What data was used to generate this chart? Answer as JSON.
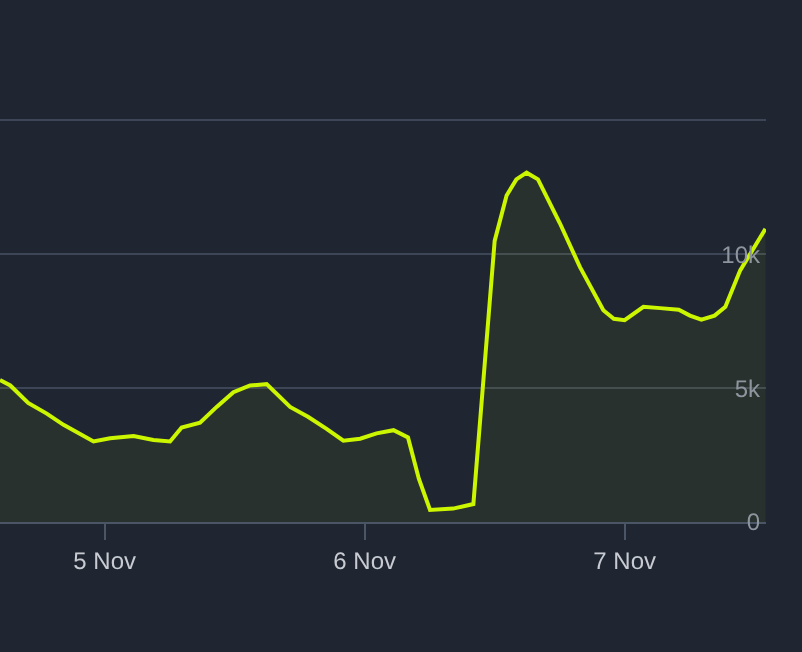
{
  "chart_data": {
    "type": "area",
    "x": [
      "--11-04T14:20",
      "--11-04T15:17",
      "--11-04T16:56",
      "--11-04T18:39",
      "--11-04T20:12",
      "--11-04T22:58",
      "--11-05T00:30",
      "--11-05T02:40",
      "--11-05T04:30",
      "--11-05T06:02",
      "--11-05T07:06",
      "--11-05T08:48",
      "--11-05T10:20",
      "--11-05T11:53",
      "--11-05T13:25",
      "--11-05T14:57",
      "--11-05T17:07",
      "--11-05T18:46",
      "--11-05T20:29",
      "--11-05T22:02",
      "--11-05T23:35",
      "--11-06T01:06",
      "--11-06T02:40",
      "--11-06T04:00",
      "--11-06T05:00",
      "--11-06T06:02",
      "--11-06T08:10",
      "--11-06T10:02",
      "--11-06T12:00",
      "--11-06T13:06",
      "--11-06T14:00",
      "--11-06T14:57",
      "--11-06T16:00",
      "--11-06T18:02",
      "--11-06T19:52",
      "--11-06T22:02",
      "--11-06T23:00",
      "--11-07T00:00",
      "--11-07T01:44",
      "--11-07T03:17",
      "--11-07T05:00",
      "--11-07T06:02",
      "--11-07T07:05",
      "--11-07T08:18",
      "--11-07T09:18",
      "--11-07T10:40",
      "--11-07T13:00"
    ],
    "series": [
      {
        "color": "#ccf500",
        "values": [
          5300,
          5100,
          4450,
          4050,
          3630,
          3010,
          3130,
          3210,
          3060,
          3010,
          3530,
          3710,
          4300,
          4850,
          5100,
          5150,
          4300,
          3930,
          3480,
          3040,
          3110,
          3310,
          3430,
          3160,
          1620,
          450,
          500,
          670,
          10500,
          12200,
          12800,
          13050,
          12800,
          11150,
          9530,
          7910,
          7590,
          7540,
          8040,
          7990,
          7930,
          7710,
          7560,
          7710,
          8040,
          9400,
          10950
        ]
      }
    ],
    "xlim": [
      "--11-04T14:20",
      "--11-07T13:03"
    ],
    "xticks": [
      {
        "value": "--11-05",
        "label": "5 Nov"
      },
      {
        "value": "--11-06",
        "label": "6 Nov"
      },
      {
        "value": "--11-07",
        "label": "7 Nov"
      }
    ],
    "ylim": [
      0,
      19500
    ],
    "yticks": [
      {
        "value": 0,
        "label": "0"
      },
      {
        "value": 5000,
        "label": "5k"
      },
      {
        "value": 10000,
        "label": "10k"
      },
      {
        "value": 15000,
        "label": null
      }
    ],
    "grid": "y",
    "legend": false,
    "marker": "none",
    "line_style": "solid"
  }
}
